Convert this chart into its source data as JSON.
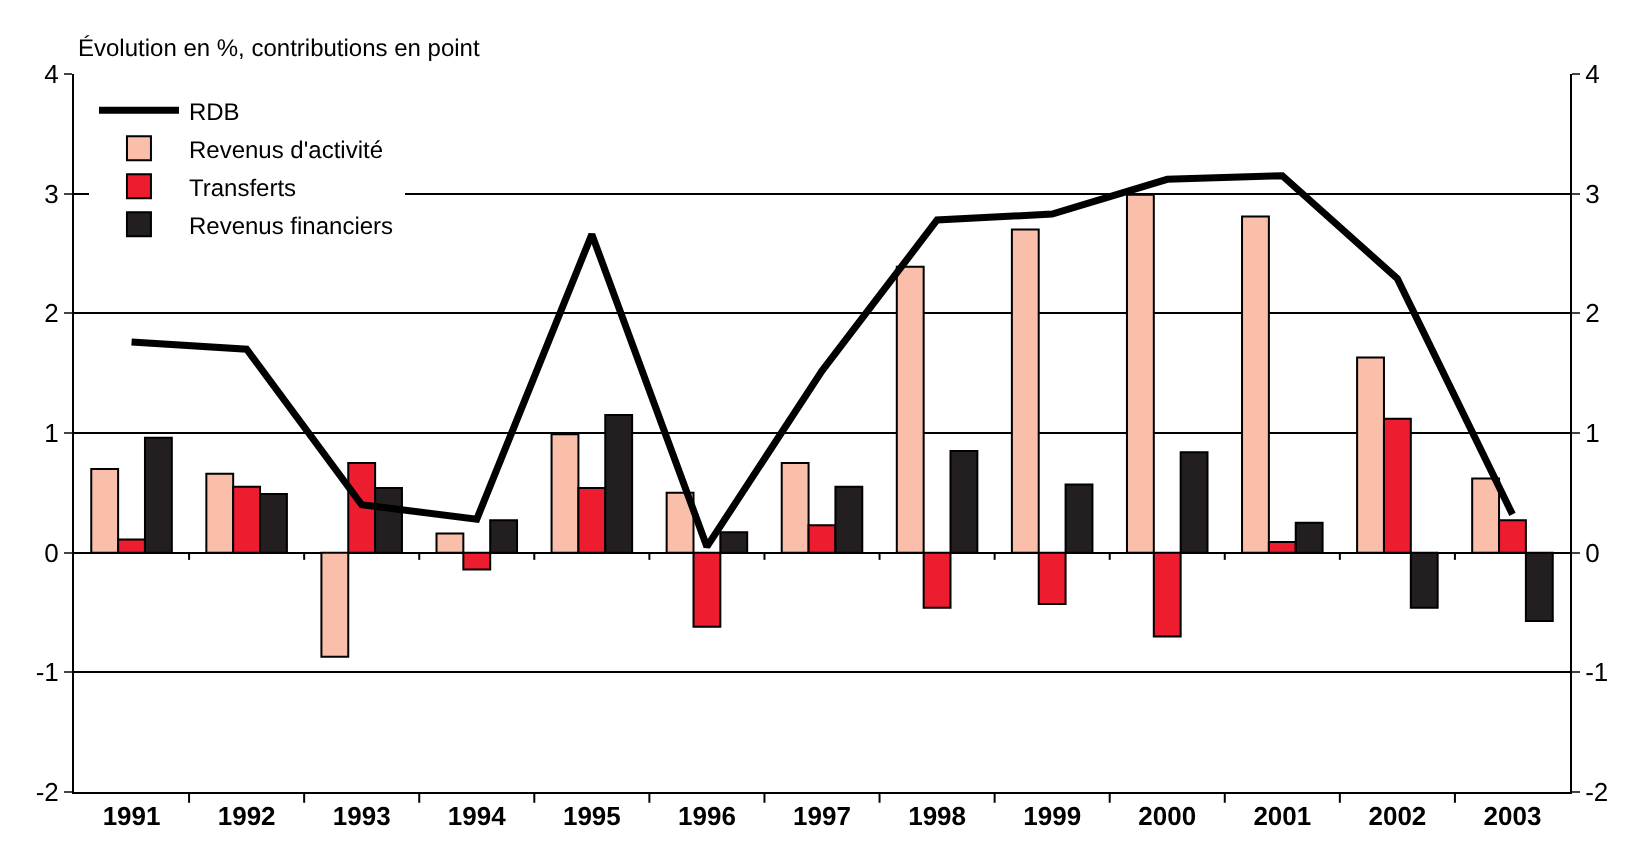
{
  "chart_data": {
    "type": "bar",
    "subtitle": "Évolution en %, contributions en point",
    "categories": [
      "1991",
      "1992",
      "1993",
      "1994",
      "1995",
      "1996",
      "1997",
      "1998",
      "1999",
      "2000",
      "2001",
      "2002",
      "2003"
    ],
    "series": [
      {
        "name": "RDB",
        "type": "line",
        "color": "#000000",
        "values": [
          1.76,
          1.7,
          0.4,
          0.28,
          2.66,
          0.05,
          1.52,
          2.78,
          2.83,
          3.12,
          3.15,
          2.29,
          0.32
        ]
      },
      {
        "name": "Revenus d'activité",
        "color": "#f9bfaa",
        "values": [
          0.7,
          0.66,
          -0.87,
          0.16,
          0.99,
          0.5,
          0.75,
          2.39,
          2.7,
          2.99,
          2.81,
          1.63,
          0.62
        ]
      },
      {
        "name": "Transferts",
        "color": "#ed1c2e",
        "values": [
          0.11,
          0.55,
          0.75,
          -0.14,
          0.54,
          -0.62,
          0.23,
          -0.46,
          -0.43,
          -0.7,
          0.09,
          1.12,
          0.27
        ]
      },
      {
        "name": "Revenus financiers",
        "color": "#231f20",
        "values": [
          0.96,
          0.49,
          0.54,
          0.27,
          1.15,
          0.17,
          0.55,
          0.85,
          0.57,
          0.84,
          0.25,
          -0.46,
          -0.57
        ]
      }
    ],
    "ylim": [
      -2,
      4
    ],
    "yticks": [
      -2,
      -1,
      0,
      1,
      2,
      3,
      4
    ],
    "y2lim": [
      -2,
      4
    ],
    "y2ticks": [
      -2,
      -1,
      0,
      1,
      2,
      3,
      4
    ],
    "grid": "y",
    "legend": "top left"
  }
}
